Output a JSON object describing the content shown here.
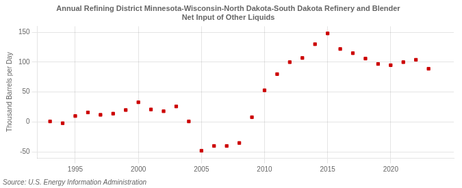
{
  "chart_data": {
    "type": "scatter",
    "title": "Annual Refining District Minnesota-Wisconsin-North Dakota-South Dakota Refinery and Blender\nNet Input of Other Liquids",
    "ylabel": "Thousand Barrels per Day",
    "source": "Source: U.S. Energy Information Administration",
    "x": [
      1993,
      1994,
      1995,
      1996,
      1997,
      1998,
      1999,
      2000,
      2001,
      2002,
      2003,
      2004,
      2005,
      2006,
      2007,
      2008,
      2009,
      2010,
      2011,
      2012,
      2013,
      2014,
      2015,
      2016,
      2017,
      2018,
      2019,
      2020,
      2021,
      2022,
      2023
    ],
    "values": [
      1,
      -2,
      10,
      16,
      12,
      14,
      20,
      33,
      21,
      18,
      26,
      1,
      -48,
      -40,
      -40,
      -35,
      8,
      53,
      80,
      100,
      107,
      130,
      148,
      122,
      115,
      106,
      97,
      95,
      100,
      104,
      89
    ],
    "color": "#cc0000",
    "marker": "square",
    "line_style": "none",
    "xlim": [
      1992,
      2025
    ],
    "xticks": [
      1995,
      2000,
      2005,
      2010,
      2015,
      2020
    ],
    "ylim": [
      -60,
      160
    ],
    "yticks": [
      -50,
      0,
      50,
      100,
      150
    ],
    "grid": true,
    "legend": "none"
  }
}
